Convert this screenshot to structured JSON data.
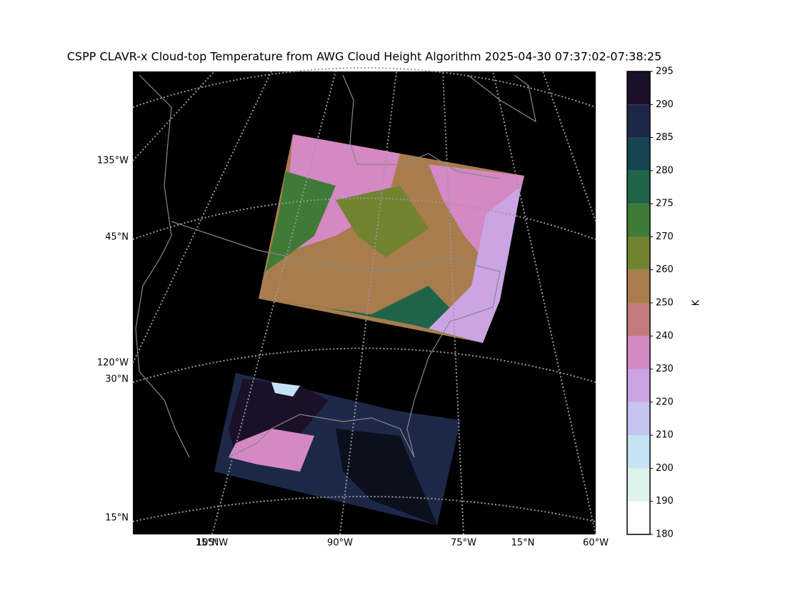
{
  "title": "CSPP CLAVR-x Cloud-top Temperature from AWG Cloud Height Algorithm 2025-04-30 07:37:02-07:38:25",
  "map": {
    "left_labels": [
      "135°W",
      "45°N",
      "120°W",
      "30°N",
      "15°N"
    ],
    "bottom_labels": [
      "105°W",
      "15°N",
      "90°W",
      "75°W",
      "15°N",
      "60°W"
    ]
  },
  "colorbar": {
    "label": "K",
    "ticks": [
      180,
      190,
      200,
      210,
      220,
      230,
      240,
      250,
      260,
      270,
      275,
      280,
      285,
      290,
      295
    ],
    "colors": [
      "#ffffff",
      "#dff3ec",
      "#c6e3f3",
      "#c4c4f3",
      "#cba4e4",
      "#d488c4",
      "#c47a7a",
      "#a87c4c",
      "#728330",
      "#3f7a37",
      "#1f6449",
      "#17454f",
      "#1d2849",
      "#1c1028"
    ]
  }
}
